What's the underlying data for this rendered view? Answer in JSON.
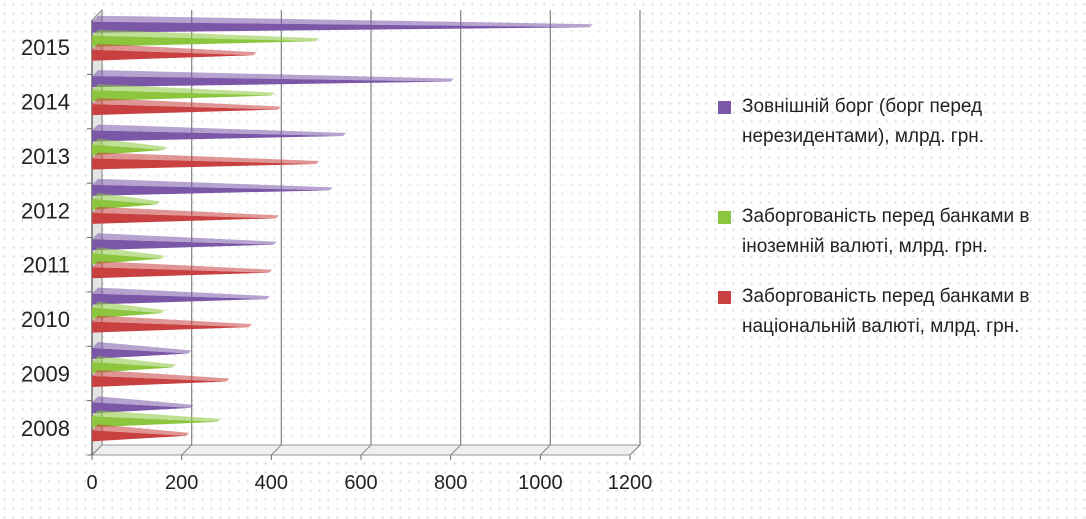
{
  "chart_data": {
    "type": "bar",
    "orientation": "horizontal",
    "categories": [
      "2008",
      "2009",
      "2010",
      "2011",
      "2012",
      "2013",
      "2014",
      "2015"
    ],
    "series": [
      {
        "name": "Зовнішній борг (борг перед нерезидентами), млрд. грн.",
        "color": "#7b57a8",
        "values": [
          220,
          215,
          390,
          405,
          530,
          560,
          800,
          1110
        ]
      },
      {
        "name": "Заборгованість перед банками в іноземній валюті, млрд. грн.",
        "color": "#8cc63e",
        "values": [
          280,
          180,
          155,
          155,
          145,
          160,
          400,
          500
        ]
      },
      {
        "name": "Заборгованість перед банками в національній валюті, млрд. грн.",
        "color": "#c84040",
        "values": [
          210,
          300,
          350,
          395,
          410,
          500,
          415,
          360
        ]
      }
    ],
    "xlim": [
      0,
      1200
    ],
    "xticks": [
      "0",
      "200",
      "400",
      "600",
      "800",
      "1000",
      "1200"
    ],
    "grid": true,
    "legend_position": "right"
  }
}
